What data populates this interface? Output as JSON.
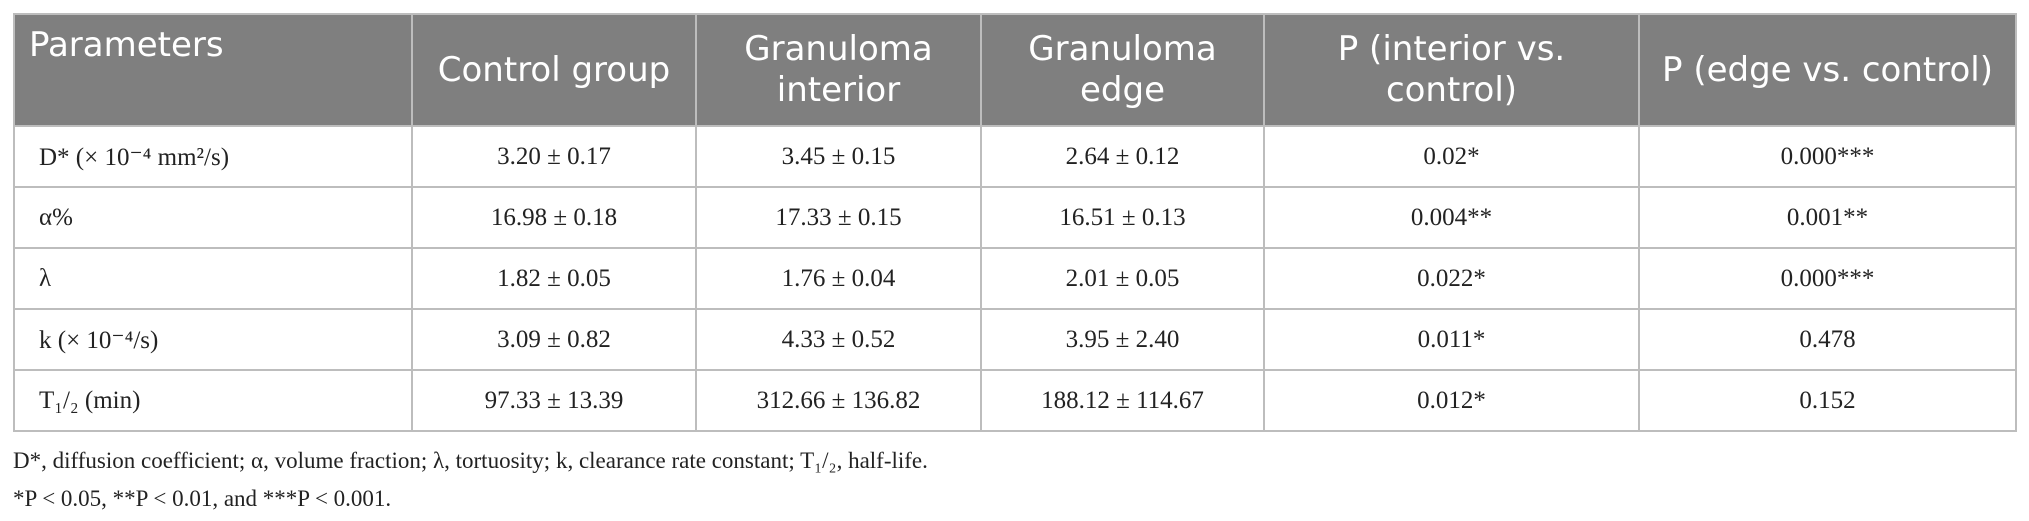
{
  "table": {
    "header": [
      "Parameters",
      "Control group",
      "Granuloma interior",
      "Granuloma edge",
      "P (interior vs. control)",
      "P (edge vs. control)"
    ],
    "rows": [
      [
        "D* (× 10⁻⁴ mm²/s)",
        "3.20 ± 0.17",
        "3.45 ± 0.15",
        "2.64 ± 0.12",
        "0.02*",
        "0.000***"
      ],
      [
        "α%",
        "16.98 ± 0.18",
        "17.33 ± 0.15",
        "16.51 ± 0.13",
        "0.004**",
        "0.001**"
      ],
      [
        "λ",
        "1.82 ± 0.05",
        "1.76 ± 0.04",
        "2.01 ± 0.05",
        "0.022*",
        "0.000***"
      ],
      [
        "k (× 10⁻⁴/s)",
        "3.09 ± 0.82",
        "4.33 ± 0.52",
        "3.95 ± 2.40",
        "0.011*",
        "0.478"
      ],
      [
        "T₁/₂ (min)",
        "97.33 ± 13.39",
        "312.66 ± 136.82",
        "188.12 ± 114.67",
        "0.012*",
        "0.152"
      ]
    ]
  },
  "footnotes": [
    "D*, diffusion coefficient; α, volume fraction; λ, tortuosity; k, clearance rate constant; T₁/₂,  half-life.",
    "*P < 0.05, **P < 0.01, and ***P < 0.001."
  ]
}
